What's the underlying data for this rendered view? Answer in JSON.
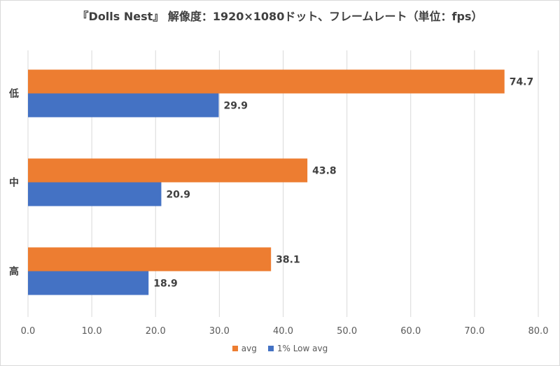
{
  "chart_data": {
    "type": "bar",
    "orientation": "horizontal",
    "title": "『Dolls Nest』 解像度：1920×1080ドット、フレームレート（単位：fps）",
    "categories": [
      "低",
      "中",
      "高"
    ],
    "series": [
      {
        "name": "avg",
        "values": [
          74.7,
          43.8,
          38.1
        ],
        "color": "#ED7D31"
      },
      {
        "name": "1% Low avg",
        "values": [
          29.9,
          20.9,
          18.9
        ],
        "color": "#4472C4"
      }
    ],
    "xlim": [
      0,
      80
    ],
    "xticks": [
      0,
      10,
      20,
      30,
      40,
      50,
      60,
      70,
      80
    ],
    "tick_labels": [
      "0.0",
      "10.0",
      "20.0",
      "30.0",
      "40.0",
      "50.0",
      "60.0",
      "70.0",
      "80.0"
    ],
    "data_labels": [
      [
        "74.7",
        "43.8",
        "38.1"
      ],
      [
        "29.9",
        "20.9",
        "18.9"
      ]
    ],
    "grid": "vertical",
    "legend_position": "bottom"
  }
}
